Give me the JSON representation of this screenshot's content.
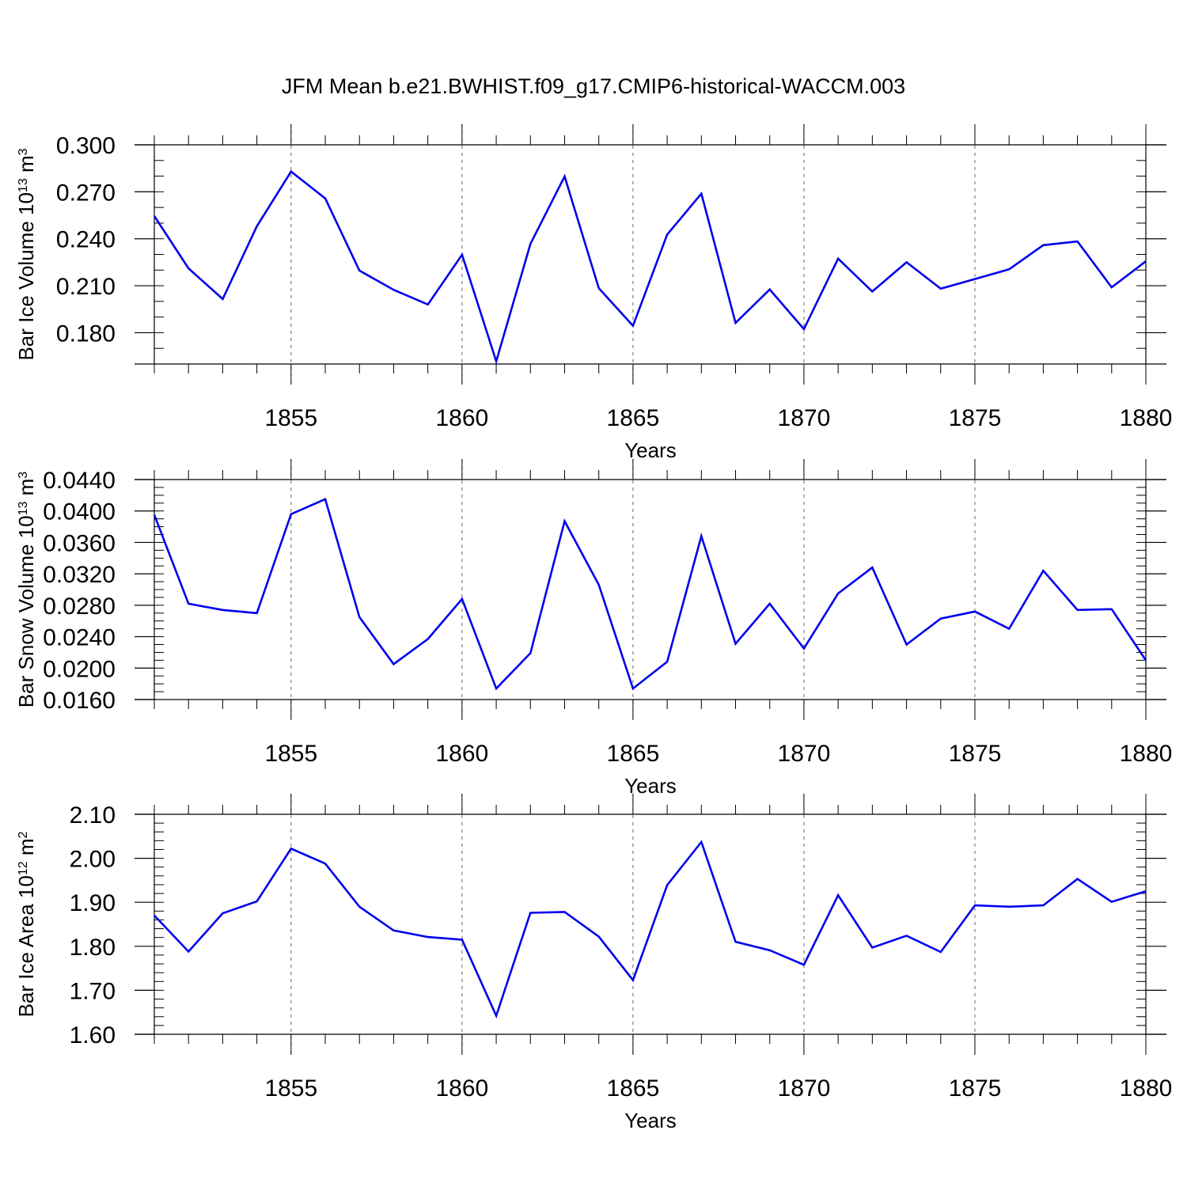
{
  "title": "JFM Mean b.e21.BWHIST.f09_g17.CMIP6-historical-WACCM.003",
  "colors": {
    "line": "#0000ee",
    "axis": "#000000",
    "grid": "#666666"
  },
  "chart_data": [
    {
      "type": "line",
      "name": "ice-volume",
      "ylabel_main": "Bar Ice Volume 10",
      "ylabel_exp": "13",
      "ylabel_unit": " m",
      "ylabel_unit_exp": "3",
      "xlabel": "Years",
      "xlim": [
        1851,
        1880
      ],
      "ylim": [
        0.16,
        0.3
      ],
      "yticks": [
        0.18,
        0.21,
        0.24,
        0.27,
        0.3
      ],
      "ytick_labels": [
        "0.180",
        "0.210",
        "0.240",
        "0.270",
        "0.300"
      ],
      "yminor_step": 0.01,
      "xticks": [
        1855,
        1860,
        1865,
        1870,
        1875,
        1880
      ],
      "xtick_labels": [
        "1855",
        "1860",
        "1865",
        "1870",
        "1875",
        "1880"
      ],
      "x": [
        1851,
        1852,
        1853,
        1854,
        1855,
        1856,
        1857,
        1858,
        1859,
        1860,
        1861,
        1862,
        1863,
        1864,
        1865,
        1866,
        1867,
        1868,
        1869,
        1870,
        1871,
        1872,
        1873,
        1874,
        1875,
        1876,
        1877,
        1878,
        1879,
        1880
      ],
      "series": [
        {
          "name": "Bar Ice Volume",
          "values": [
            0.2545,
            0.2211,
            0.2015,
            0.248,
            0.2829,
            0.2658,
            0.2197,
            0.2074,
            0.198,
            0.2298,
            0.1617,
            0.2367,
            0.2798,
            0.2084,
            0.1844,
            0.2427,
            0.2688,
            0.1863,
            0.2076,
            0.1823,
            0.2273,
            0.2063,
            0.225,
            0.2081,
            0.2143,
            0.2205,
            0.2359,
            0.2383,
            0.209,
            0.2256
          ]
        }
      ]
    },
    {
      "type": "line",
      "name": "snow-volume",
      "ylabel_main": "Bar Snow Volume 10",
      "ylabel_exp": "13",
      "ylabel_unit": " m",
      "ylabel_unit_exp": "3",
      "xlabel": "Years",
      "xlim": [
        1851,
        1880
      ],
      "ylim": [
        0.016,
        0.044
      ],
      "yticks": [
        0.016,
        0.02,
        0.024,
        0.028,
        0.032,
        0.036,
        0.04,
        0.044
      ],
      "ytick_labels": [
        "0.0160",
        "0.0200",
        "0.0240",
        "0.0280",
        "0.0320",
        "0.0360",
        "0.0400",
        "0.0440"
      ],
      "yminor_step": 0.001,
      "xticks": [
        1855,
        1860,
        1865,
        1870,
        1875,
        1880
      ],
      "xtick_labels": [
        "1855",
        "1860",
        "1865",
        "1870",
        "1875",
        "1880"
      ],
      "x": [
        1851,
        1852,
        1853,
        1854,
        1855,
        1856,
        1857,
        1858,
        1859,
        1860,
        1861,
        1862,
        1863,
        1864,
        1865,
        1866,
        1867,
        1868,
        1869,
        1870,
        1871,
        1872,
        1873,
        1874,
        1875,
        1876,
        1877,
        1878,
        1879,
        1880
      ],
      "series": [
        {
          "name": "Bar Snow Volume",
          "values": [
            0.0395,
            0.0282,
            0.0274,
            0.027,
            0.0396,
            0.0415,
            0.0265,
            0.0205,
            0.0237,
            0.0288,
            0.0174,
            0.0219,
            0.0387,
            0.0306,
            0.0174,
            0.0208,
            0.0368,
            0.0231,
            0.0282,
            0.0225,
            0.0295,
            0.0328,
            0.023,
            0.0263,
            0.0272,
            0.025,
            0.0324,
            0.0274,
            0.0275,
            0.021
          ]
        }
      ]
    },
    {
      "type": "line",
      "name": "ice-area",
      "ylabel_main": "Bar Ice Area 10",
      "ylabel_exp": "12",
      "ylabel_unit": " m",
      "ylabel_unit_exp": "2",
      "xlabel": "Years",
      "xlim": [
        1851,
        1880
      ],
      "ylim": [
        1.6,
        2.1
      ],
      "yticks": [
        1.6,
        1.7,
        1.8,
        1.9,
        2.0,
        2.1
      ],
      "ytick_labels": [
        "1.60",
        "1.70",
        "1.80",
        "1.90",
        "2.00",
        "2.10"
      ],
      "yminor_step": 0.02,
      "xticks": [
        1855,
        1860,
        1865,
        1870,
        1875,
        1880
      ],
      "xtick_labels": [
        "1855",
        "1860",
        "1865",
        "1870",
        "1875",
        "1880"
      ],
      "x": [
        1851,
        1852,
        1853,
        1854,
        1855,
        1856,
        1857,
        1858,
        1859,
        1860,
        1861,
        1862,
        1863,
        1864,
        1865,
        1866,
        1867,
        1868,
        1869,
        1870,
        1871,
        1872,
        1873,
        1874,
        1875,
        1876,
        1877,
        1878,
        1879,
        1880
      ],
      "series": [
        {
          "name": "Bar Ice Area",
          "values": [
            1.87,
            1.788,
            1.875,
            1.902,
            2.022,
            1.988,
            1.89,
            1.836,
            1.821,
            1.815,
            1.642,
            1.876,
            1.878,
            1.822,
            1.723,
            1.939,
            2.037,
            1.81,
            1.791,
            1.758,
            1.916,
            1.797,
            1.824,
            1.787,
            1.893,
            1.89,
            1.893,
            1.953,
            1.901,
            1.925
          ]
        }
      ]
    }
  ]
}
